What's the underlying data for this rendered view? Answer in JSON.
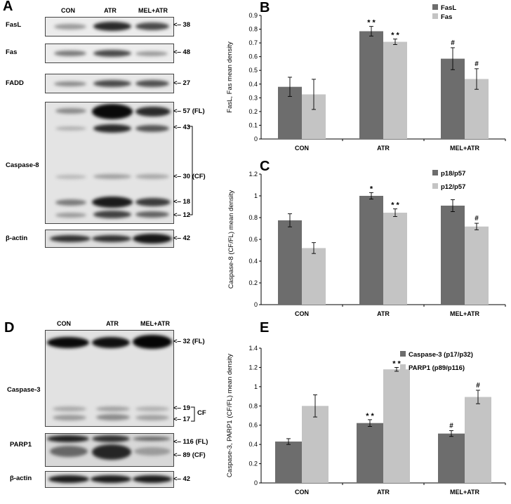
{
  "panels": {
    "A": "A",
    "B": "B",
    "C": "C",
    "D": "D",
    "E": "E"
  },
  "blot_A": {
    "lanes": [
      "CON",
      "ATR",
      "MEL+ATR"
    ],
    "rows": {
      "fasl": "FasL",
      "fas": "Fas",
      "fadd": "FADD",
      "caspase8": "Caspase-8",
      "bactin": "β-actin"
    },
    "markers": {
      "fasl": "38",
      "fas": "48",
      "fadd": "27",
      "c8_57": "57 (FL)",
      "c8_43": "43",
      "c8_30": "30 (CF)",
      "c8_18": "18",
      "c8_12": "12",
      "bactin": "42"
    }
  },
  "blot_D": {
    "lanes": [
      "CON",
      "ATR",
      "MEL+ATR"
    ],
    "rows": {
      "caspase3": "Caspase-3",
      "parp1": "PARP1",
      "bactin": "β-actin"
    },
    "markers": {
      "c3_32": "32 (FL)",
      "c3_19": "19",
      "c3_17": "17",
      "cf": "CF",
      "parp_116": "116 (FL)",
      "parp_89": "89  (CF)",
      "bactin": "42"
    }
  },
  "chart_data": [
    {
      "id": "B",
      "type": "bar",
      "categories": [
        "CON",
        "ATR",
        "MEL+ATR"
      ],
      "ylabel": "FasL, Fas mean density",
      "ylim": [
        0,
        0.9
      ],
      "yticks": [
        0,
        0.1,
        0.2,
        0.3,
        0.4,
        0.5,
        0.6,
        0.7,
        0.8,
        0.9
      ],
      "legend_position": "top-right",
      "grid": false,
      "series": [
        {
          "name": "FasL",
          "color": "#6d6d6d",
          "values": [
            0.38,
            0.785,
            0.585
          ],
          "errors": [
            0.07,
            0.035,
            0.08
          ],
          "marks": [
            "",
            "* *",
            "#"
          ]
        },
        {
          "name": "Fas",
          "color": "#c4c4c4",
          "values": [
            0.325,
            0.708,
            0.437
          ],
          "errors": [
            0.11,
            0.02,
            0.075
          ],
          "marks": [
            "",
            "* *",
            "#"
          ]
        }
      ]
    },
    {
      "id": "C",
      "type": "bar",
      "categories": [
        "CON",
        "ATR",
        "MEL+ATR"
      ],
      "ylabel": "Caspase-8 (CF/FL) mean density",
      "ylim": [
        0,
        1.2
      ],
      "yticks": [
        0,
        0.2,
        0.4,
        0.6,
        0.8,
        1,
        1.2
      ],
      "legend_position": "top-right",
      "grid": false,
      "series": [
        {
          "name": "p18/p57",
          "color": "#6d6d6d",
          "values": [
            0.775,
            1.0,
            0.91
          ],
          "errors": [
            0.06,
            0.03,
            0.055
          ],
          "marks": [
            "",
            "*",
            ""
          ]
        },
        {
          "name": "p12/p57",
          "color": "#c4c4c4",
          "values": [
            0.52,
            0.845,
            0.718
          ],
          "errors": [
            0.05,
            0.035,
            0.03
          ],
          "marks": [
            "",
            "* *",
            "#"
          ]
        }
      ]
    },
    {
      "id": "E",
      "type": "bar",
      "categories": [
        "CON",
        "ATR",
        "MEL+ATR"
      ],
      "ylabel": "Caspase-3, PARP1 (CF/FL) mean density",
      "ylim": [
        0,
        1.4
      ],
      "yticks": [
        0,
        0.2,
        0.4,
        0.6,
        0.8,
        1,
        1.2,
        1.4
      ],
      "legend_position": "top-right",
      "grid": false,
      "series": [
        {
          "name": "Caspase-3 (p17/p32)",
          "color": "#6d6d6d",
          "values": [
            0.43,
            0.622,
            0.513
          ],
          "errors": [
            0.03,
            0.035,
            0.03
          ],
          "marks": [
            "",
            "* *",
            "#"
          ]
        },
        {
          "name": "PARP1 (p89/p116)",
          "color": "#c4c4c4",
          "values": [
            0.8,
            1.18,
            0.893
          ],
          "errors": [
            0.115,
            0.02,
            0.07
          ],
          "marks": [
            "",
            "* *",
            "#"
          ]
        }
      ]
    }
  ]
}
